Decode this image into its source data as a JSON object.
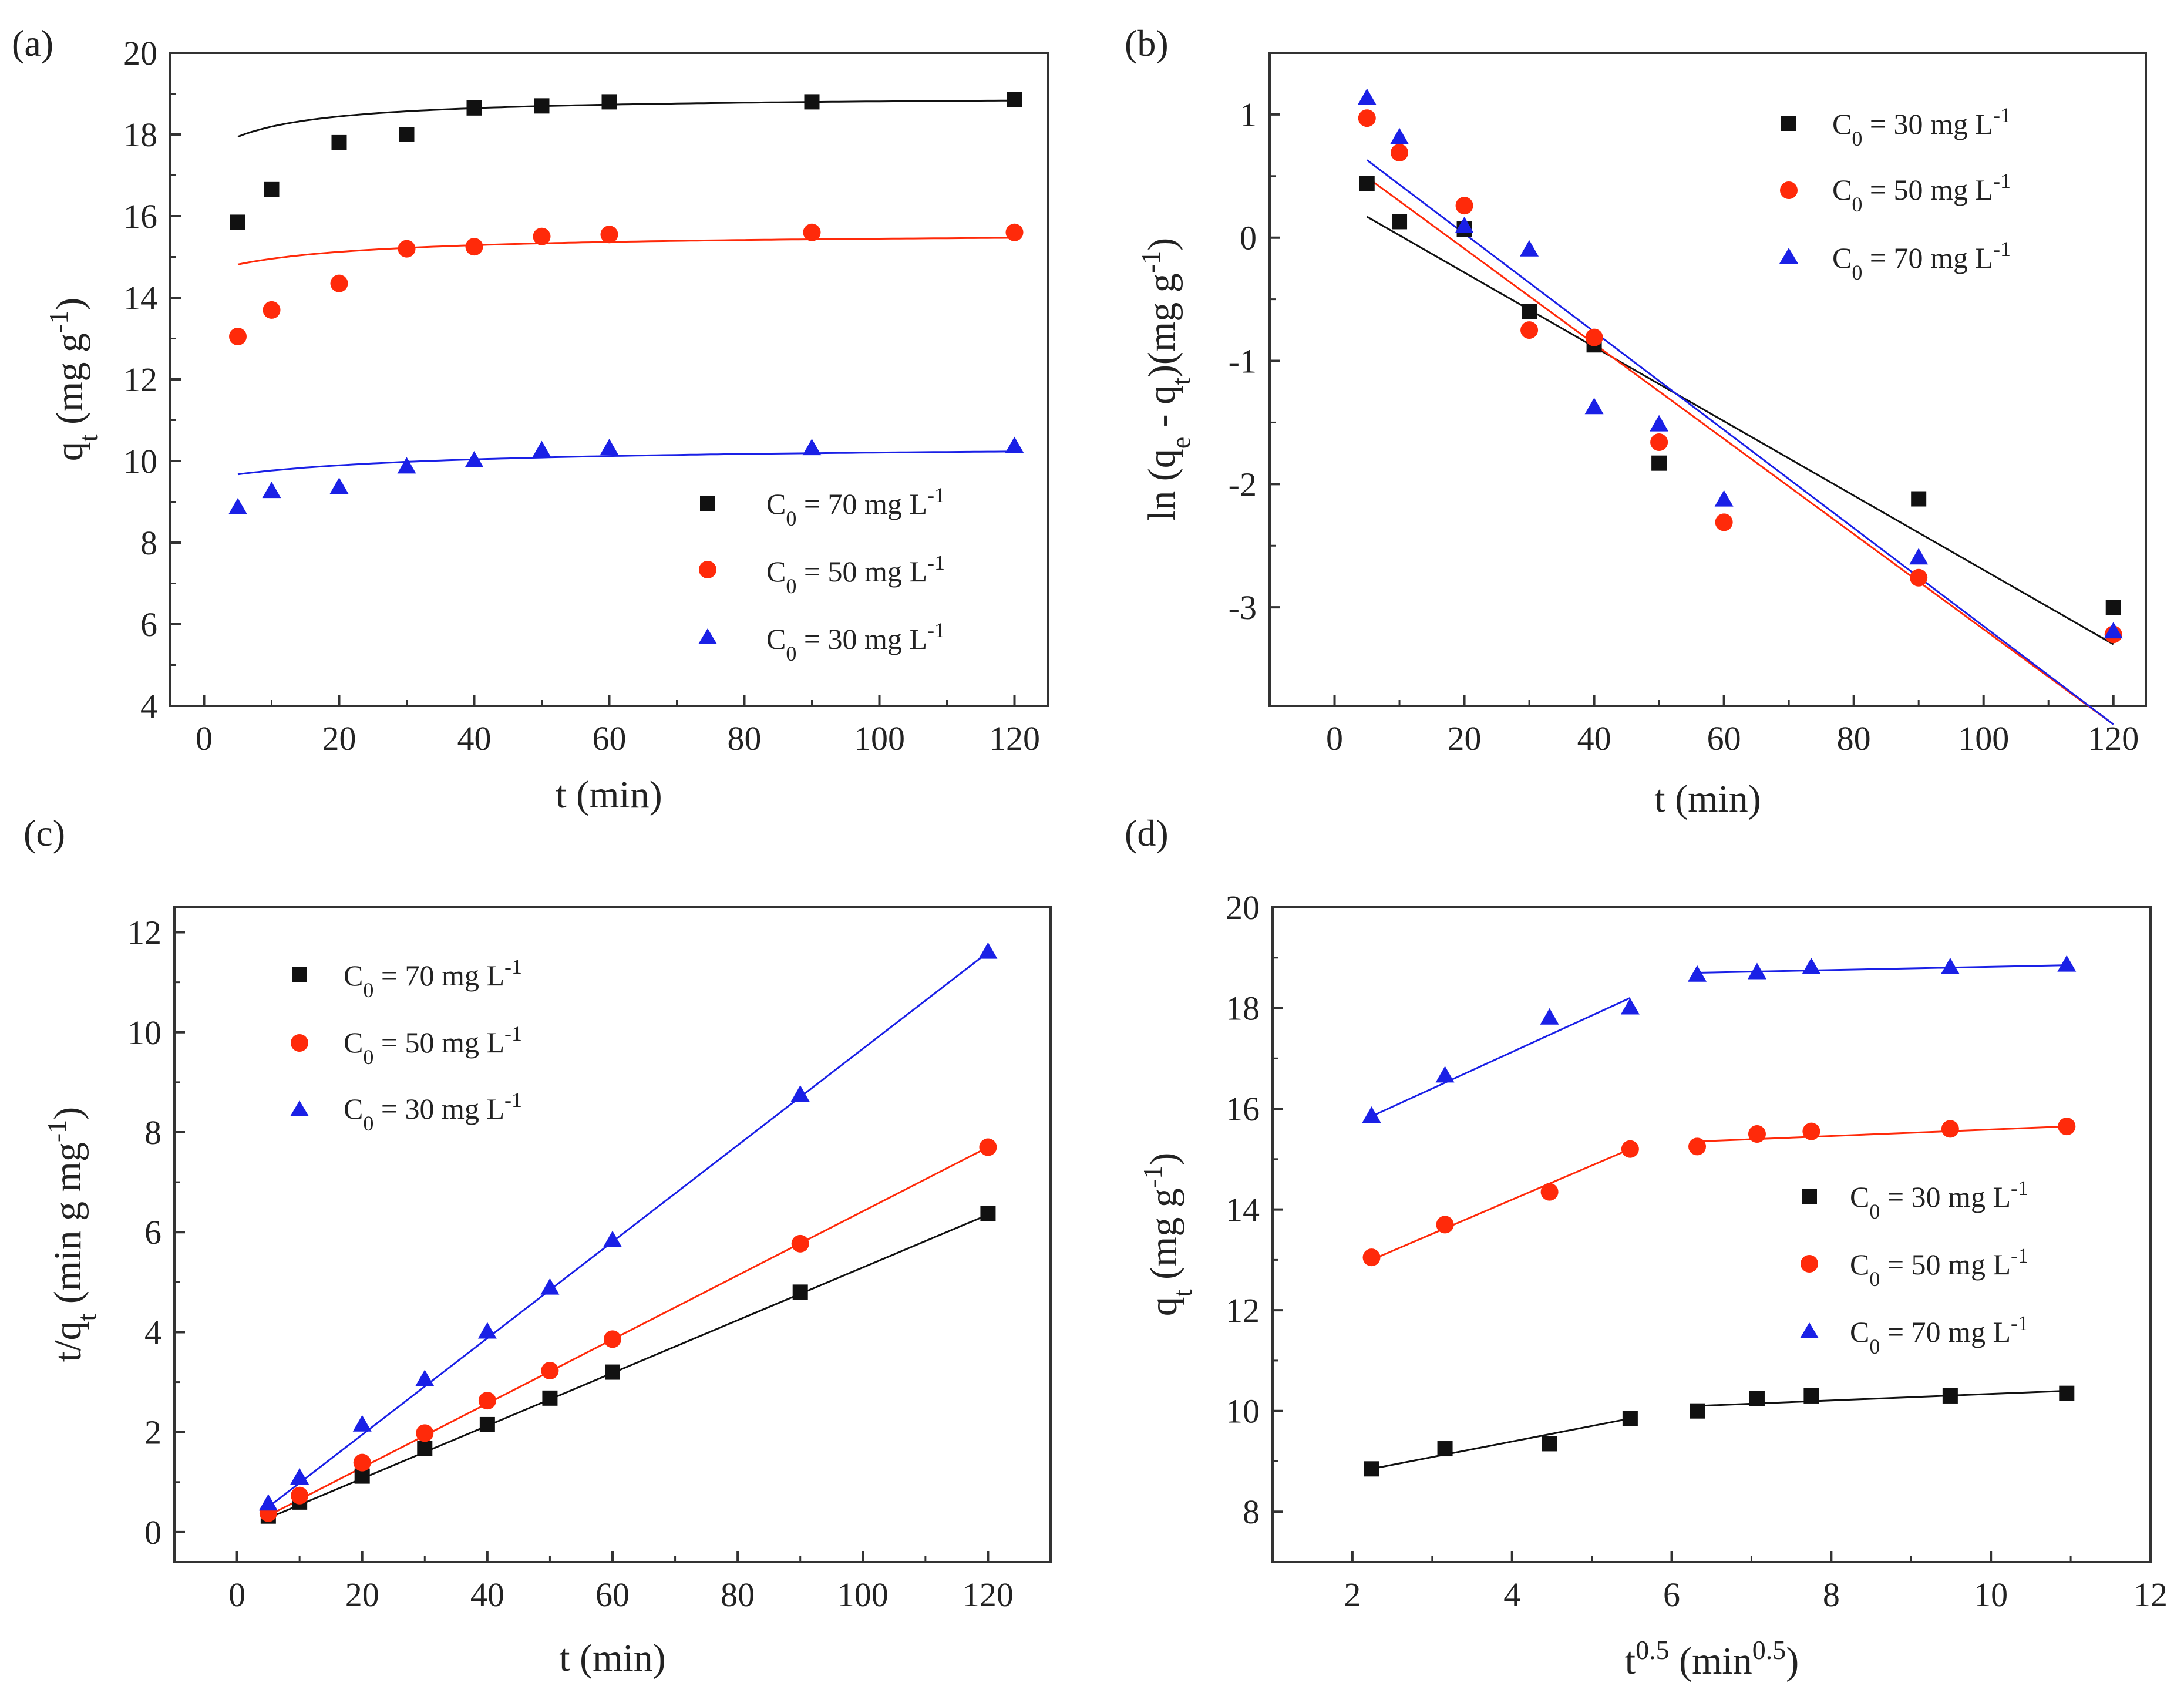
{
  "colors": {
    "black": "#111111",
    "red": "#ff2a0a",
    "blue": "#1a20e6"
  },
  "chart_data": [
    {
      "panel": "(a)",
      "type": "scatter",
      "xlabel": "t (min)",
      "xlim": [
        -5,
        125
      ],
      "ylim": [
        4,
        20
      ],
      "xticks": [
        0,
        20,
        40,
        60,
        80,
        100,
        120
      ],
      "yticks": [
        4,
        6,
        8,
        10,
        12,
        14,
        16,
        18,
        20
      ],
      "ylabel_parts": {
        "main": "q",
        "sub": "t",
        "open": " (mg g",
        "sup": "-1",
        "close": ")"
      },
      "legend_position": "bottom-right",
      "series": [
        {
          "name": "C0 = 70 mg L-1",
          "label_main": "C",
          "label_sub": "0",
          "label_rest": " = 70 mg L",
          "label_sup": "-1",
          "marker": "square",
          "color": "black",
          "x": [
            5,
            10,
            20,
            30,
            40,
            50,
            60,
            90,
            120
          ],
          "y": [
            15.85,
            16.65,
            17.8,
            18.0,
            18.65,
            18.7,
            18.8,
            18.8,
            18.85
          ],
          "fit": {
            "kind": "pso",
            "qe": 18.95,
            "k": 0.065,
            "t0": -9.5
          }
        },
        {
          "name": "C0 = 50 mg L-1",
          "label_main": "C",
          "label_sub": "0",
          "label_rest": " = 50 mg L",
          "label_sup": "-1",
          "marker": "circle",
          "color": "red",
          "x": [
            5,
            10,
            20,
            30,
            40,
            50,
            60,
            90,
            120
          ],
          "y": [
            13.05,
            13.7,
            14.35,
            15.2,
            15.25,
            15.5,
            15.55,
            15.6,
            15.6
          ],
          "fit": {
            "kind": "pso",
            "qe": 15.6,
            "k": 0.055,
            "t0": -17.0
          }
        },
        {
          "name": "C0 = 30 mg L-1",
          "label_main": "C",
          "label_sub": "0",
          "label_rest": " = 30 mg L",
          "label_sup": "-1",
          "marker": "triangle",
          "color": "blue",
          "x": [
            5,
            10,
            20,
            30,
            40,
            50,
            60,
            90,
            120
          ],
          "y": [
            8.85,
            9.25,
            9.35,
            9.85,
            10.0,
            10.25,
            10.3,
            10.3,
            10.35
          ],
          "fit": {
            "kind": "pso",
            "qe": 10.4,
            "k": 0.04,
            "t0": -27.0
          }
        }
      ]
    },
    {
      "panel": "(b)",
      "type": "scatter",
      "xlabel": "t (min)",
      "xlim": [
        -10,
        125
      ],
      "ylim": [
        -3.8,
        1.5
      ],
      "xticks": [
        0,
        20,
        40,
        60,
        80,
        100,
        120
      ],
      "yticks": [
        -3,
        -2,
        -1,
        0,
        1
      ],
      "ylabel_parts": {
        "pre": "ln (q",
        "sub1": "e",
        "mid": " - q",
        "sub2": "t",
        "post": ")(mg g",
        "sup": "-1",
        "close": ")"
      },
      "legend_position": "top-right",
      "series": [
        {
          "name": "C0 = 30 mg L-1",
          "label_main": "C",
          "label_sub": "0",
          "label_rest": " = 30 mg L",
          "label_sup": "-1",
          "marker": "square",
          "color": "black",
          "x": [
            5,
            10,
            20,
            30,
            40,
            50,
            90,
            120
          ],
          "y": [
            0.44,
            0.13,
            0.07,
            -0.6,
            -0.87,
            -1.83,
            -2.12,
            -3.0
          ],
          "fit": {
            "kind": "linear",
            "x0": 5,
            "x1": 120,
            "y0": 0.17,
            "y1": -3.3
          }
        },
        {
          "name": "C0 = 50 mg L-1",
          "label_main": "C",
          "label_sub": "0",
          "label_rest": " = 50 mg L",
          "label_sup": "-1",
          "marker": "circle",
          "color": "red",
          "x": [
            5,
            10,
            20,
            30,
            40,
            50,
            60,
            90,
            120
          ],
          "y": [
            0.97,
            0.69,
            0.26,
            -0.75,
            -0.81,
            -1.66,
            -2.31,
            -2.76,
            -3.22
          ],
          "fit": {
            "kind": "linear",
            "x0": 5,
            "x1": 120,
            "y0": 0.49,
            "y1": -3.95
          }
        },
        {
          "name": "C0 = 70 mg L-1",
          "label_main": "C",
          "label_sub": "0",
          "label_rest": " = 70 mg L",
          "label_sup": "-1",
          "marker": "triangle",
          "color": "blue",
          "x": [
            5,
            10,
            20,
            30,
            40,
            50,
            60,
            90,
            120
          ],
          "y": [
            1.13,
            0.81,
            0.09,
            -0.1,
            -1.38,
            -1.52,
            -2.13,
            -2.6,
            -3.2
          ],
          "fit": {
            "kind": "linear",
            "x0": 5,
            "x1": 120,
            "y0": 0.63,
            "y1": -3.95
          }
        }
      ]
    },
    {
      "panel": "(c)",
      "type": "scatter",
      "xlabel": "t (min)",
      "xlim": [
        -10,
        130
      ],
      "ylim": [
        -0.6,
        12.5
      ],
      "xticks": [
        0,
        20,
        40,
        60,
        80,
        100,
        120
      ],
      "yticks": [
        0,
        2,
        4,
        6,
        8,
        10,
        12
      ],
      "ylabel_parts": {
        "pre": "t/q",
        "sub": "t",
        "mid": " (min g mg",
        "sup": "-1",
        "close": ")"
      },
      "legend_position": "top-left",
      "series": [
        {
          "name": "C0 = 70 mg L-1",
          "label_main": "C",
          "label_sub": "0",
          "label_rest": " = 70 mg L",
          "label_sup": "-1",
          "marker": "square",
          "color": "black",
          "x": [
            5,
            10,
            20,
            30,
            40,
            50,
            60,
            90,
            120
          ],
          "y": [
            0.32,
            0.6,
            1.12,
            1.67,
            2.15,
            2.68,
            3.2,
            4.8,
            6.37
          ],
          "fit": {
            "kind": "linear",
            "x0": 5,
            "x1": 120,
            "y0": 0.28,
            "y1": 6.35
          }
        },
        {
          "name": "C0 = 50 mg L-1",
          "label_main": "C",
          "label_sub": "0",
          "label_rest": " = 50 mg L",
          "label_sup": "-1",
          "marker": "circle",
          "color": "red",
          "x": [
            5,
            10,
            20,
            30,
            40,
            50,
            60,
            90,
            120
          ],
          "y": [
            0.38,
            0.73,
            1.39,
            1.98,
            2.63,
            3.23,
            3.86,
            5.77,
            7.7
          ],
          "fit": {
            "kind": "linear",
            "x0": 5,
            "x1": 120,
            "y0": 0.33,
            "y1": 7.7
          }
        },
        {
          "name": "C0 = 30 mg L-1",
          "label_main": "C",
          "label_sub": "0",
          "label_rest": " = 30 mg L",
          "label_sup": "-1",
          "marker": "triangle",
          "color": "blue",
          "x": [
            5,
            10,
            20,
            30,
            40,
            50,
            60,
            90,
            120
          ],
          "y": [
            0.56,
            1.08,
            2.14,
            3.05,
            4.0,
            4.88,
            5.83,
            8.74,
            11.6
          ],
          "fit": {
            "kind": "linear",
            "x0": 5,
            "x1": 120,
            "y0": 0.5,
            "y1": 11.6
          }
        }
      ]
    },
    {
      "panel": "(d)",
      "type": "scatter",
      "xlim": [
        1,
        12
      ],
      "ylim": [
        7,
        20
      ],
      "xticks": [
        2,
        4,
        6,
        8,
        10,
        12
      ],
      "yticks": [
        8,
        10,
        12,
        14,
        16,
        18,
        20
      ],
      "xlabel_parts": {
        "main": "t",
        "sup": "0.5",
        "mid": " (min",
        "sup2": "0.5",
        "close": ")"
      },
      "ylabel_parts": {
        "main": "q",
        "sub": "t",
        "open": " (mg g",
        "sup": "-1",
        "close": ")"
      },
      "legend_position": "right",
      "series": [
        {
          "name": "C0 = 30 mg L-1",
          "label_main": "C",
          "label_sub": "0",
          "label_rest": " = 30 mg L",
          "label_sup": "-1",
          "marker": "square",
          "color": "black",
          "x": [
            2.24,
            3.16,
            4.47,
            5.48,
            6.32,
            7.07,
            7.75,
            9.49,
            10.95
          ],
          "y": [
            8.85,
            9.25,
            9.35,
            9.85,
            10.0,
            10.25,
            10.3,
            10.3,
            10.35
          ],
          "fits": [
            {
              "x0": 2.24,
              "x1": 5.48,
              "y0": 8.85,
              "y1": 9.85
            },
            {
              "x0": 6.32,
              "x1": 10.95,
              "y0": 10.1,
              "y1": 10.4
            }
          ]
        },
        {
          "name": "C0 = 50 mg L-1",
          "label_main": "C",
          "label_sub": "0",
          "label_rest": " = 50 mg L",
          "label_sup": "-1",
          "marker": "circle",
          "color": "red",
          "x": [
            2.24,
            3.16,
            4.47,
            5.48,
            6.32,
            7.07,
            7.75,
            9.49,
            10.95
          ],
          "y": [
            13.05,
            13.7,
            14.35,
            15.2,
            15.25,
            15.5,
            15.55,
            15.6,
            15.65
          ],
          "fits": [
            {
              "x0": 2.24,
              "x1": 5.48,
              "y0": 13.0,
              "y1": 15.2
            },
            {
              "x0": 6.32,
              "x1": 10.95,
              "y0": 15.35,
              "y1": 15.65
            }
          ]
        },
        {
          "name": "C0 = 70 mg L-1",
          "label_main": "C",
          "label_sub": "0",
          "label_rest": " = 70 mg L",
          "label_sup": "-1",
          "marker": "triangle",
          "color": "blue",
          "x": [
            2.24,
            3.16,
            4.47,
            5.48,
            6.32,
            7.07,
            7.75,
            9.49,
            10.95
          ],
          "y": [
            15.85,
            16.65,
            17.8,
            18.0,
            18.65,
            18.7,
            18.8,
            18.8,
            18.85
          ],
          "fits": [
            {
              "x0": 2.24,
              "x1": 5.48,
              "y0": 15.85,
              "y1": 18.2
            },
            {
              "x0": 6.32,
              "x1": 10.95,
              "y0": 18.7,
              "y1": 18.85
            }
          ]
        }
      ]
    }
  ]
}
